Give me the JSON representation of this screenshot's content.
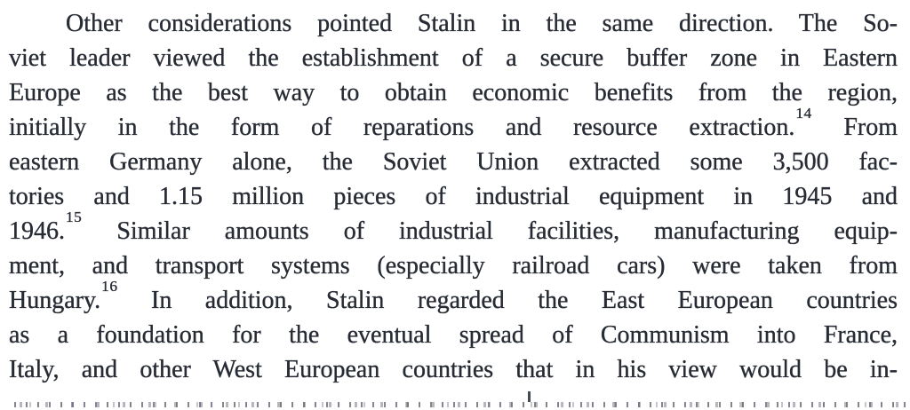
{
  "page": {
    "background_color": "#ffffff",
    "text_color": "#272b34"
  },
  "paragraph": {
    "lines": [
      {
        "pre": "Other considerations pointed Stalin in the same direction. The So-"
      },
      {
        "pre": "viet leader viewed the establishment of a secure buffer zone in Eastern"
      },
      {
        "pre": "Europe as the best way to obtain economic benefits from the region,"
      },
      {
        "pre": "initially in the form of reparations and resource extraction.",
        "footnote": "14",
        "post": " From"
      },
      {
        "pre": "eastern Germany alone, the Soviet Union extracted some 3,500 fac-"
      },
      {
        "pre": "tories and 1.15 million pieces of industrial equipment in 1945 and"
      },
      {
        "pre": "1946.",
        "footnote": "15",
        "post": " Similar amounts of industrial facilities, manufacturing equip-"
      },
      {
        "pre": "ment, and transport systems (especially railroad cars) were taken from"
      },
      {
        "pre": "Hungary.",
        "footnote": "16",
        "post": " In addition, Stalin regarded the East European countries"
      },
      {
        "pre": "as a foundation for the eventual spread of Communism into France,"
      },
      {
        "pre": "Italy, and other West European countries that in his view would be in-"
      }
    ]
  }
}
